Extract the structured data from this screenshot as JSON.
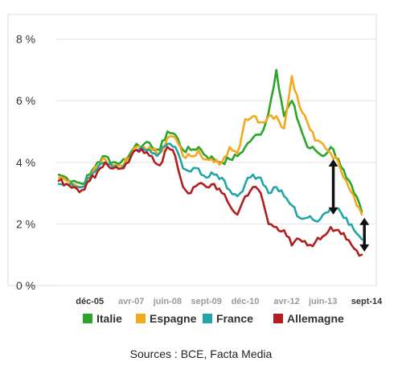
{
  "source_text": "Sources : BCE, Facta Media",
  "chart_data": {
    "type": "line",
    "ylim": [
      0,
      8.8
    ],
    "yticks": [
      0,
      2,
      4,
      6,
      8
    ],
    "ytick_labels": [
      "0 %",
      "2 %",
      "4 %",
      "6 %",
      "8 %"
    ],
    "x_start": "2004-12",
    "x_end": "2014-09",
    "xtick_labels": [
      {
        "label": "déc-05",
        "at": "2005-12",
        "color": "#333333"
      },
      {
        "label": "avr-07",
        "at": "2007-04",
        "color": "#999999"
      },
      {
        "label": "juin-08",
        "at": "2008-06",
        "color": "#999999"
      },
      {
        "label": "sept-09",
        "at": "2009-09",
        "color": "#999999"
      },
      {
        "label": "déc-10",
        "at": "2010-12",
        "color": "#999999"
      },
      {
        "label": "avr-12",
        "at": "2012-04",
        "color": "#999999"
      },
      {
        "label": "juin-13",
        "at": "2013-06",
        "color": "#999999"
      },
      {
        "label": "sept-14",
        "at": "2014-09",
        "color": "#333333"
      }
    ],
    "grid": true,
    "legend_position": "bottom",
    "series": [
      {
        "name": "Italie",
        "color": "#2aa52a",
        "points": [
          [
            "2004-12",
            3.6
          ],
          [
            "2005-03",
            3.5
          ],
          [
            "2005-06",
            3.4
          ],
          [
            "2005-09",
            3.3
          ],
          [
            "2005-12",
            3.6
          ],
          [
            "2006-03",
            4.0
          ],
          [
            "2006-06",
            4.2
          ],
          [
            "2006-09",
            4.0
          ],
          [
            "2006-12",
            4.0
          ],
          [
            "2007-03",
            4.2
          ],
          [
            "2007-06",
            4.6
          ],
          [
            "2007-09",
            4.6
          ],
          [
            "2007-12",
            4.5
          ],
          [
            "2008-03",
            4.4
          ],
          [
            "2008-06",
            5.0
          ],
          [
            "2008-09",
            4.9
          ],
          [
            "2008-12",
            4.4
          ],
          [
            "2009-03",
            4.4
          ],
          [
            "2009-06",
            4.5
          ],
          [
            "2009-09",
            4.2
          ],
          [
            "2009-12",
            4.1
          ],
          [
            "2010-03",
            4.0
          ],
          [
            "2010-06",
            4.1
          ],
          [
            "2010-09",
            4.2
          ],
          [
            "2010-12",
            4.5
          ],
          [
            "2011-03",
            4.8
          ],
          [
            "2011-06",
            4.9
          ],
          [
            "2011-09",
            5.6
          ],
          [
            "2011-12",
            7.0
          ],
          [
            "2012-03",
            5.5
          ],
          [
            "2012-06",
            6.0
          ],
          [
            "2012-09",
            5.2
          ],
          [
            "2012-12",
            4.5
          ],
          [
            "2013-03",
            4.4
          ],
          [
            "2013-06",
            4.2
          ],
          [
            "2013-09",
            4.5
          ],
          [
            "2013-12",
            4.1
          ],
          [
            "2014-03",
            3.5
          ],
          [
            "2014-06",
            3.0
          ],
          [
            "2014-09",
            2.4
          ]
        ]
      },
      {
        "name": "Espagne",
        "color": "#f5a81c",
        "points": [
          [
            "2004-12",
            3.5
          ],
          [
            "2005-03",
            3.4
          ],
          [
            "2005-06",
            3.3
          ],
          [
            "2005-09",
            3.2
          ],
          [
            "2005-12",
            3.5
          ],
          [
            "2006-03",
            3.9
          ],
          [
            "2006-06",
            4.1
          ],
          [
            "2006-09",
            3.9
          ],
          [
            "2006-12",
            3.9
          ],
          [
            "2007-03",
            4.1
          ],
          [
            "2007-06",
            4.5
          ],
          [
            "2007-09",
            4.5
          ],
          [
            "2007-12",
            4.4
          ],
          [
            "2008-03",
            4.3
          ],
          [
            "2008-06",
            4.8
          ],
          [
            "2008-09",
            4.8
          ],
          [
            "2008-12",
            4.2
          ],
          [
            "2009-03",
            4.2
          ],
          [
            "2009-06",
            4.4
          ],
          [
            "2009-09",
            4.1
          ],
          [
            "2009-12",
            4.0
          ],
          [
            "2010-03",
            4.0
          ],
          [
            "2010-06",
            4.5
          ],
          [
            "2010-09",
            4.3
          ],
          [
            "2010-12",
            5.4
          ],
          [
            "2011-03",
            5.5
          ],
          [
            "2011-06",
            5.3
          ],
          [
            "2011-09",
            5.5
          ],
          [
            "2011-12",
            5.5
          ],
          [
            "2012-03",
            5.1
          ],
          [
            "2012-06",
            6.8
          ],
          [
            "2012-09",
            5.8
          ],
          [
            "2012-12",
            5.3
          ],
          [
            "2013-03",
            4.7
          ],
          [
            "2013-06",
            4.6
          ],
          [
            "2013-09",
            4.3
          ],
          [
            "2013-12",
            4.0
          ],
          [
            "2014-03",
            3.4
          ],
          [
            "2014-06",
            2.9
          ],
          [
            "2014-09",
            2.3
          ]
        ]
      },
      {
        "name": "France",
        "color": "#21a5a8",
        "points": [
          [
            "2004-12",
            3.3
          ],
          [
            "2005-03",
            3.3
          ],
          [
            "2005-06",
            3.2
          ],
          [
            "2005-09",
            3.2
          ],
          [
            "2005-12",
            3.5
          ],
          [
            "2006-03",
            3.8
          ],
          [
            "2006-06",
            4.0
          ],
          [
            "2006-09",
            3.8
          ],
          [
            "2006-12",
            3.8
          ],
          [
            "2007-03",
            4.0
          ],
          [
            "2007-06",
            4.4
          ],
          [
            "2007-09",
            4.4
          ],
          [
            "2007-12",
            4.3
          ],
          [
            "2008-03",
            4.3
          ],
          [
            "2008-06",
            4.6
          ],
          [
            "2008-09",
            4.5
          ],
          [
            "2008-12",
            3.8
          ],
          [
            "2009-03",
            3.7
          ],
          [
            "2009-06",
            3.8
          ],
          [
            "2009-09",
            3.5
          ],
          [
            "2009-12",
            3.6
          ],
          [
            "2010-03",
            3.5
          ],
          [
            "2010-06",
            3.1
          ],
          [
            "2010-09",
            2.9
          ],
          [
            "2010-12",
            3.3
          ],
          [
            "2011-03",
            3.6
          ],
          [
            "2011-06",
            3.5
          ],
          [
            "2011-09",
            3.0
          ],
          [
            "2011-12",
            3.2
          ],
          [
            "2012-03",
            2.9
          ],
          [
            "2012-06",
            2.6
          ],
          [
            "2012-09",
            2.2
          ],
          [
            "2012-12",
            2.2
          ],
          [
            "2013-03",
            2.1
          ],
          [
            "2013-06",
            2.3
          ],
          [
            "2013-09",
            2.5
          ],
          [
            "2013-12",
            2.5
          ],
          [
            "2014-03",
            2.2
          ],
          [
            "2014-06",
            1.8
          ],
          [
            "2014-09",
            1.5
          ]
        ]
      },
      {
        "name": "Allemagne",
        "color": "#b21d1d",
        "points": [
          [
            "2004-12",
            3.4
          ],
          [
            "2005-03",
            3.3
          ],
          [
            "2005-06",
            3.2
          ],
          [
            "2005-09",
            3.1
          ],
          [
            "2005-12",
            3.4
          ],
          [
            "2006-03",
            3.7
          ],
          [
            "2006-06",
            4.0
          ],
          [
            "2006-09",
            3.8
          ],
          [
            "2006-12",
            3.8
          ],
          [
            "2007-03",
            4.0
          ],
          [
            "2007-06",
            4.4
          ],
          [
            "2007-09",
            4.3
          ],
          [
            "2007-12",
            4.2
          ],
          [
            "2008-03",
            3.9
          ],
          [
            "2008-06",
            4.5
          ],
          [
            "2008-09",
            4.2
          ],
          [
            "2008-12",
            3.2
          ],
          [
            "2009-03",
            3.0
          ],
          [
            "2009-06",
            3.3
          ],
          [
            "2009-09",
            3.2
          ],
          [
            "2009-12",
            3.3
          ],
          [
            "2010-03",
            3.0
          ],
          [
            "2010-06",
            2.6
          ],
          [
            "2010-09",
            2.3
          ],
          [
            "2010-12",
            2.9
          ],
          [
            "2011-03",
            3.2
          ],
          [
            "2011-06",
            3.0
          ],
          [
            "2011-09",
            2.0
          ],
          [
            "2011-12",
            1.9
          ],
          [
            "2012-03",
            1.8
          ],
          [
            "2012-06",
            1.3
          ],
          [
            "2012-09",
            1.5
          ],
          [
            "2012-12",
            1.3
          ],
          [
            "2013-03",
            1.4
          ],
          [
            "2013-06",
            1.6
          ],
          [
            "2013-09",
            1.9
          ],
          [
            "2013-12",
            1.8
          ],
          [
            "2014-03",
            1.5
          ],
          [
            "2014-06",
            1.2
          ],
          [
            "2014-09",
            1.0
          ]
        ]
      }
    ],
    "annotations": [
      {
        "type": "double-arrow",
        "at": "2013-10",
        "from": 2.3,
        "to": 4.1,
        "color": "#111111"
      },
      {
        "type": "double-arrow",
        "at": "2014-10",
        "from": 1.1,
        "to": 2.2,
        "color": "#111111"
      }
    ]
  }
}
